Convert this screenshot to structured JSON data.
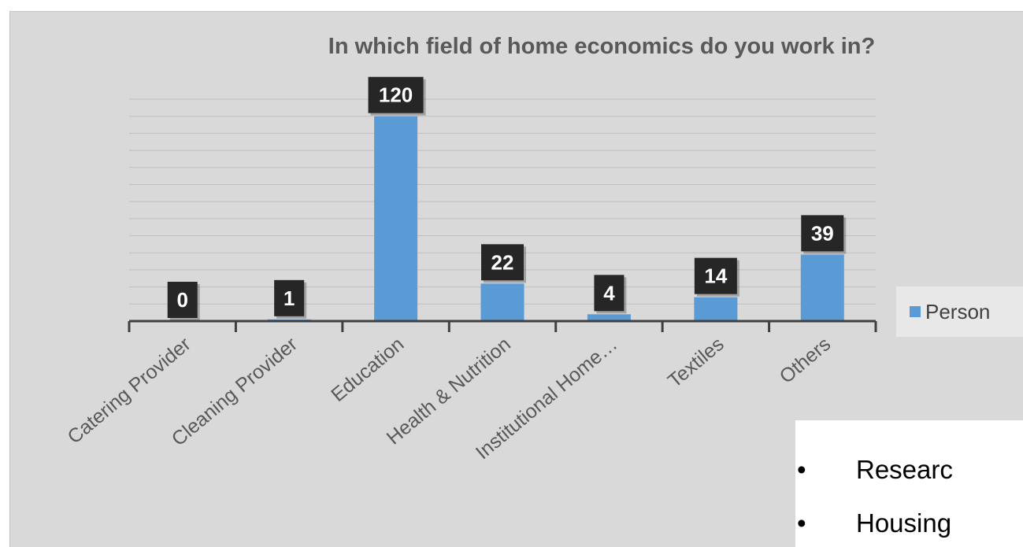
{
  "chart_data": {
    "type": "bar",
    "title": "In which field of home economics do you work in?",
    "categories": [
      "Catering Provider",
      "Cleaning Provider",
      "Education",
      "Health & Nutrition",
      "Institutional Home…",
      "Textiles",
      "Others"
    ],
    "series": [
      {
        "name": "Person",
        "values": [
          0,
          1,
          120,
          22,
          4,
          14,
          39
        ],
        "color": "#5b9bd5"
      }
    ],
    "data_labels": [
      "0",
      "1",
      "120",
      "22",
      "4",
      "14",
      "39"
    ],
    "ylim": [
      0,
      130
    ],
    "grid": true,
    "legend_position": "right"
  },
  "legend": {
    "label": "Person"
  },
  "bullets": {
    "symbol": "•",
    "items": [
      "Researc",
      "Housing"
    ]
  },
  "colors": {
    "bar": "#5b9bd5",
    "panel": "#d9d9d9",
    "data_label_bg": "#262626"
  }
}
